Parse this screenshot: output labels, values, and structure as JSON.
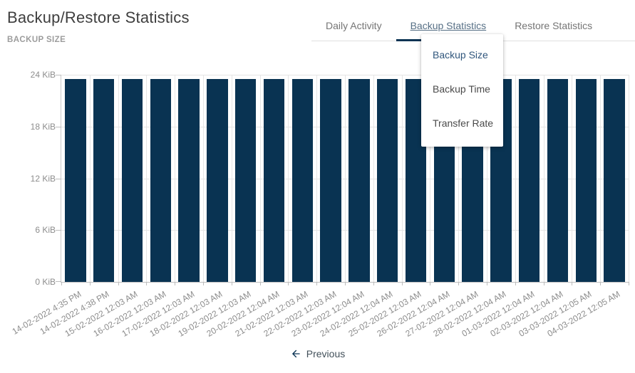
{
  "page": {
    "title": "Backup/Restore Statistics",
    "section_label": "BACKUP SIZE"
  },
  "tabs": [
    {
      "label": "Daily Activity",
      "active": false
    },
    {
      "label": "Backup Statistics",
      "active": true
    },
    {
      "label": "Restore Statistics",
      "active": false
    }
  ],
  "dropdown": {
    "items": [
      {
        "label": "Backup Size",
        "selected": true
      },
      {
        "label": "Backup Time",
        "selected": false
      },
      {
        "label": "Transfer Rate",
        "selected": false
      }
    ]
  },
  "chart_data": {
    "type": "bar",
    "title": "BACKUP SIZE",
    "categories": [
      "14-02-2022 4:35 PM",
      "14-02-2022 4:38 PM",
      "15-02-2022 12:03 AM",
      "16-02-2022 12:03 AM",
      "17-02-2022 12:03 AM",
      "18-02-2022 12:03 AM",
      "19-02-2022 12:03 AM",
      "20-02-2022 12:04 AM",
      "21-02-2022 12:03 AM",
      "22-02-2022 12:03 AM",
      "23-02-2022 12:04 AM",
      "24-02-2022 12:04 AM",
      "25-02-2022 12:03 AM",
      "26-02-2022 12:04 AM",
      "27-02-2022 12:04 AM",
      "28-02-2022 12:04 AM",
      "01-03-2022 12:04 AM",
      "02-03-2022 12:04 AM",
      "03-03-2022 12:05 AM",
      "04-03-2022 12:05 AM"
    ],
    "values": [
      23.5,
      23.5,
      23.5,
      23.5,
      23.5,
      23.5,
      23.5,
      23.5,
      23.5,
      23.5,
      23.5,
      23.5,
      23.5,
      23.5,
      23.5,
      23.5,
      23.5,
      23.5,
      23.5,
      23.5
    ],
    "series_name": "Backup Size",
    "unit": "KiB",
    "xlabel": "",
    "ylabel": "",
    "ylim": [
      0,
      24
    ],
    "yticks": [
      0,
      6,
      12,
      18,
      24
    ],
    "ytick_labels": [
      "0 KiB",
      "6 KiB",
      "12 KiB",
      "18 KiB",
      "24 KiB"
    ],
    "grid": true,
    "legend": false,
    "bar_color": "#093352"
  },
  "pagination": {
    "previous_label": "Previous",
    "previous_icon": "arrow-left-icon"
  },
  "colors": {
    "accent": "#0a3353",
    "bar": "#093352",
    "active_link": "#30567c",
    "active_tab_text": "#566f85",
    "inactive_tab_text": "#757575",
    "axis_text": "#8d8d8d"
  }
}
